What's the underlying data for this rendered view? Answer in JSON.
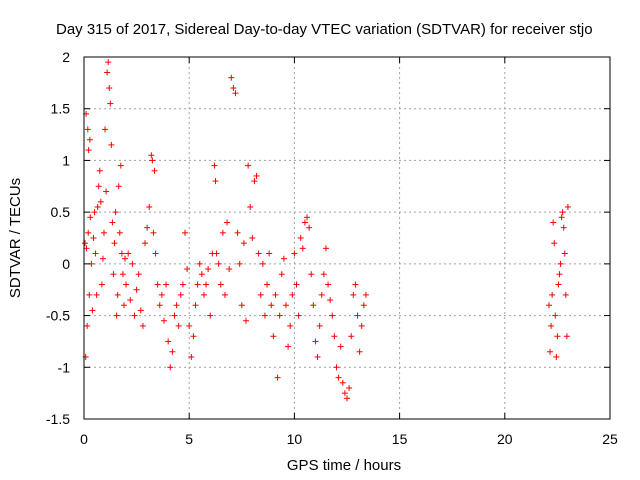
{
  "chart_data": {
    "type": "scatter",
    "title": "Day 315 of 2017, Sidereal Day-to-day VTEC variation (SDTVAR) for receiver stjo",
    "xlabel": "GPS time / hours",
    "ylabel": "SDTVAR / TECUs",
    "xlim": [
      0,
      25
    ],
    "ylim": [
      -1.5,
      2
    ],
    "xticks": [
      0,
      5,
      10,
      15,
      20,
      25
    ],
    "xtick_labels": [
      "0",
      "5",
      "10",
      "15",
      "20",
      "25"
    ],
    "yticks": [
      -1.5,
      -1,
      -0.5,
      0,
      0.5,
      1,
      1.5,
      2
    ],
    "ytick_labels": [
      "-1.5",
      "-1",
      "-0.5",
      "0",
      "0.5",
      "1",
      "1.5",
      "2"
    ],
    "grid": true,
    "marker": "+",
    "color": "#ff0000",
    "series": [
      {
        "name": "SDTVAR",
        "points": [
          [
            0.05,
            0.2
          ],
          [
            0.08,
            -0.9
          ],
          [
            0.1,
            1.45
          ],
          [
            0.12,
            0.15
          ],
          [
            0.15,
            -0.6
          ],
          [
            0.18,
            1.3
          ],
          [
            0.2,
            0.3
          ],
          [
            0.22,
            1.1
          ],
          [
            0.25,
            -0.3
          ],
          [
            0.28,
            1.2
          ],
          [
            0.3,
            0.45
          ],
          [
            0.35,
            0.0
          ],
          [
            0.4,
            -0.45
          ],
          [
            0.45,
            0.25
          ],
          [
            0.5,
            0.5
          ],
          [
            0.55,
            0.1
          ],
          [
            0.6,
            -0.3
          ],
          [
            0.65,
            0.55
          ],
          [
            0.7,
            0.75
          ],
          [
            0.75,
            0.9
          ],
          [
            0.8,
            0.6
          ],
          [
            0.85,
            -0.2
          ],
          [
            0.9,
            0.05
          ],
          [
            0.95,
            0.3
          ],
          [
            1.0,
            1.3
          ],
          [
            1.05,
            0.7
          ],
          [
            1.1,
            1.85
          ],
          [
            1.15,
            1.95
          ],
          [
            1.2,
            1.7
          ],
          [
            1.25,
            1.55
          ],
          [
            1.3,
            1.15
          ],
          [
            1.35,
            0.4
          ],
          [
            1.4,
            -0.1
          ],
          [
            1.45,
            0.2
          ],
          [
            1.5,
            0.5
          ],
          [
            1.55,
            -0.5
          ],
          [
            1.6,
            -0.3
          ],
          [
            1.65,
            0.75
          ],
          [
            1.7,
            0.3
          ],
          [
            1.75,
            0.95
          ],
          [
            1.8,
            0.1
          ],
          [
            1.85,
            -0.1
          ],
          [
            1.9,
            -0.4
          ],
          [
            1.95,
            0.05
          ],
          [
            2.0,
            -0.2
          ],
          [
            2.1,
            0.1
          ],
          [
            2.2,
            -0.35
          ],
          [
            2.3,
            0.0
          ],
          [
            2.4,
            -0.5
          ],
          [
            2.5,
            -0.25
          ],
          [
            2.6,
            -0.1
          ],
          [
            2.7,
            -0.45
          ],
          [
            2.8,
            -0.6
          ],
          [
            2.9,
            0.2
          ],
          [
            3.0,
            0.35
          ],
          [
            3.1,
            0.55
          ],
          [
            3.2,
            1.05
          ],
          [
            3.25,
            1.0
          ],
          [
            3.3,
            0.3
          ],
          [
            3.35,
            0.9
          ],
          [
            3.4,
            0.1
          ],
          [
            3.5,
            -0.2
          ],
          [
            3.6,
            -0.4
          ],
          [
            3.7,
            -0.3
          ],
          [
            3.8,
            -0.55
          ],
          [
            3.9,
            -0.2
          ],
          [
            4.0,
            -0.75
          ],
          [
            4.1,
            -1.0
          ],
          [
            4.2,
            -0.85
          ],
          [
            4.3,
            -0.5
          ],
          [
            4.4,
            -0.4
          ],
          [
            4.5,
            -0.6
          ],
          [
            4.6,
            -0.3
          ],
          [
            4.7,
            -0.2
          ],
          [
            4.8,
            0.3
          ],
          [
            4.9,
            -0.05
          ],
          [
            5.0,
            -0.6
          ],
          [
            5.1,
            -0.9
          ],
          [
            5.2,
            -0.7
          ],
          [
            5.3,
            -0.4
          ],
          [
            5.4,
            -0.2
          ],
          [
            5.5,
            0.0
          ],
          [
            5.6,
            -0.1
          ],
          [
            5.7,
            -0.3
          ],
          [
            5.8,
            -0.2
          ],
          [
            5.9,
            -0.05
          ],
          [
            6.0,
            -0.5
          ],
          [
            6.1,
            0.1
          ],
          [
            6.2,
            0.95
          ],
          [
            6.25,
            0.8
          ],
          [
            6.3,
            0.1
          ],
          [
            6.4,
            0.0
          ],
          [
            6.5,
            -0.2
          ],
          [
            6.6,
            0.3
          ],
          [
            6.7,
            -0.3
          ],
          [
            6.8,
            0.4
          ],
          [
            6.9,
            -0.05
          ],
          [
            7.0,
            1.8
          ],
          [
            7.1,
            1.7
          ],
          [
            7.2,
            1.65
          ],
          [
            7.3,
            0.3
          ],
          [
            7.4,
            0.0
          ],
          [
            7.5,
            -0.4
          ],
          [
            7.6,
            0.2
          ],
          [
            7.7,
            -0.55
          ],
          [
            7.8,
            0.95
          ],
          [
            7.9,
            0.55
          ],
          [
            8.0,
            0.25
          ],
          [
            8.1,
            0.8
          ],
          [
            8.2,
            0.85
          ],
          [
            8.3,
            0.1
          ],
          [
            8.4,
            -0.3
          ],
          [
            8.5,
            0.0
          ],
          [
            8.6,
            -0.5
          ],
          [
            8.7,
            -0.2
          ],
          [
            8.8,
            0.1
          ],
          [
            8.9,
            -0.4
          ],
          [
            9.0,
            -0.7
          ],
          [
            9.1,
            -0.3
          ],
          [
            9.2,
            -1.1
          ],
          [
            9.3,
            -0.5
          ],
          [
            9.4,
            -0.1
          ],
          [
            9.5,
            0.05
          ],
          [
            9.6,
            -0.4
          ],
          [
            9.7,
            -0.8
          ],
          [
            9.8,
            -0.6
          ],
          [
            9.9,
            -0.3
          ],
          [
            10.0,
            0.1
          ],
          [
            10.1,
            -0.2
          ],
          [
            10.2,
            -0.5
          ],
          [
            10.3,
            0.25
          ],
          [
            10.4,
            0.15
          ],
          [
            10.5,
            0.4
          ],
          [
            10.6,
            0.45
          ],
          [
            10.7,
            0.35
          ],
          [
            10.8,
            -0.1
          ],
          [
            10.9,
            -0.4
          ],
          [
            11.0,
            -0.75
          ],
          [
            11.1,
            -0.9
          ],
          [
            11.2,
            -0.6
          ],
          [
            11.3,
            -0.3
          ],
          [
            11.4,
            -0.1
          ],
          [
            11.5,
            0.15
          ],
          [
            11.6,
            -0.2
          ],
          [
            11.7,
            -0.35
          ],
          [
            11.8,
            -0.5
          ],
          [
            11.9,
            -0.7
          ],
          [
            12.0,
            -1.0
          ],
          [
            12.1,
            -1.1
          ],
          [
            12.2,
            -0.8
          ],
          [
            12.3,
            -1.15
          ],
          [
            12.4,
            -1.25
          ],
          [
            12.5,
            -1.3
          ],
          [
            12.6,
            -1.2
          ],
          [
            12.7,
            -0.7
          ],
          [
            12.8,
            -0.3
          ],
          [
            12.9,
            -0.2
          ],
          [
            13.0,
            -0.5
          ],
          [
            13.1,
            -0.85
          ],
          [
            13.2,
            -0.6
          ],
          [
            13.3,
            -0.4
          ],
          [
            13.4,
            -0.3
          ],
          [
            22.1,
            -0.4
          ],
          [
            22.15,
            -0.85
          ],
          [
            22.2,
            -0.6
          ],
          [
            22.25,
            -0.3
          ],
          [
            22.3,
            0.4
          ],
          [
            22.35,
            0.2
          ],
          [
            22.4,
            -0.5
          ],
          [
            22.45,
            -0.9
          ],
          [
            22.5,
            -0.7
          ],
          [
            22.55,
            -0.2
          ],
          [
            22.6,
            -0.1
          ],
          [
            22.65,
            0.0
          ],
          [
            22.7,
            0.45
          ],
          [
            22.75,
            0.5
          ],
          [
            22.8,
            0.35
          ],
          [
            22.85,
            0.1
          ],
          [
            22.9,
            -0.3
          ],
          [
            22.95,
            -0.7
          ],
          [
            23.0,
            0.55
          ]
        ]
      }
    ]
  }
}
